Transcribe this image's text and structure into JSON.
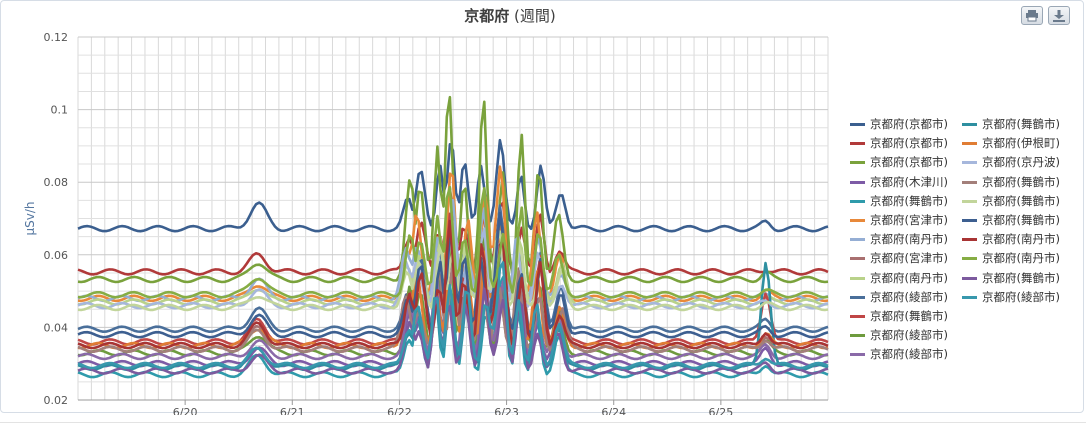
{
  "toolbar": {
    "print_icon": "print-icon",
    "export_icon": "download-icon"
  },
  "chart_data": {
    "type": "line",
    "title": "京都府",
    "subtitle": "(週間)",
    "ylabel": "μSv/h",
    "ylim": [
      0.02,
      0.12
    ],
    "yticks": [
      "0.02",
      "0.04",
      "0.06",
      "0.08",
      "0.1",
      "0.12"
    ],
    "xlim": [
      0,
      7
    ],
    "xticks": [
      {
        "x": 1,
        "label": "6/20"
      },
      {
        "x": 2,
        "label": "6/21"
      },
      {
        "x": 3,
        "label": "6/22"
      },
      {
        "x": 4,
        "label": "6/23"
      },
      {
        "x": 5,
        "label": "6/24"
      },
      {
        "x": 6,
        "label": "6/25"
      }
    ],
    "grid": true,
    "legend_position": "right",
    "series": [
      {
        "name": "京都府(京都市)",
        "color": "#3b5f8f",
        "base": 0.0672,
        "b1": 0.074,
        "b2": 0.0958,
        "b3": 0.073,
        "b4": 0.069,
        "col": 0
      },
      {
        "name": "京都府(京都市)",
        "color": "#b13a3a",
        "base": 0.0553,
        "b1": 0.06,
        "b2": 0.079,
        "b3": 0.064,
        "b4": 0.056,
        "col": 0
      },
      {
        "name": "京都府(京都市)",
        "color": "#7aa23c",
        "base": 0.0532,
        "b1": 0.058,
        "b2": 0.109,
        "b3": 0.079,
        "b4": 0.055,
        "col": 0
      },
      {
        "name": "京都府(木津川)",
        "color": "#7d5ba6",
        "base": 0.03,
        "b1": 0.034,
        "b2": 0.06,
        "b3": 0.048,
        "b4": 0.034,
        "col": 0
      },
      {
        "name": "京都府(舞鶴市)",
        "color": "#2f9bab",
        "base": 0.027,
        "b1": 0.032,
        "b2": 0.056,
        "b3": 0.044,
        "b4": 0.03,
        "col": 0
      },
      {
        "name": "京都府(宮津市)",
        "color": "#e8893a",
        "base": 0.048,
        "b1": 0.052,
        "b2": 0.086,
        "b3": 0.07,
        "b4": 0.05,
        "col": 0
      },
      {
        "name": "京都府(南丹市)",
        "color": "#95aed4",
        "base": 0.048,
        "b1": 0.053,
        "b2": 0.076,
        "b3": 0.062,
        "b4": 0.049,
        "col": 0
      },
      {
        "name": "京都府(宮津市)",
        "color": "#a97070",
        "base": 0.034,
        "b1": 0.04,
        "b2": 0.065,
        "b3": 0.052,
        "b4": 0.038,
        "col": 0
      },
      {
        "name": "京都府(南丹市)",
        "color": "#b9d28a",
        "base": 0.047,
        "b1": 0.051,
        "b2": 0.072,
        "b3": 0.06,
        "b4": 0.048,
        "col": 0
      },
      {
        "name": "京都府(綾部市)",
        "color": "#4a6f9a",
        "base": 0.0395,
        "b1": 0.045,
        "b2": 0.074,
        "b3": 0.058,
        "b4": 0.042,
        "col": 0
      },
      {
        "name": "京都府(舞鶴市)",
        "color": "#c04646",
        "base": 0.036,
        "b1": 0.042,
        "b2": 0.072,
        "b3": 0.056,
        "b4": 0.05,
        "col": 0
      },
      {
        "name": "京都府(綾部市)",
        "color": "#6e9b3e",
        "base": 0.033,
        "b1": 0.038,
        "b2": 0.07,
        "b3": 0.055,
        "b4": 0.036,
        "col": 0
      },
      {
        "name": "京都府(綾部市)",
        "color": "#8a6aa8",
        "base": 0.032,
        "b1": 0.036,
        "b2": 0.062,
        "b3": 0.05,
        "b4": 0.035,
        "col": 0
      },
      {
        "name": "京都府(舞鶴市)",
        "color": "#2e8fa0",
        "base": 0.029,
        "b1": 0.034,
        "b2": 0.058,
        "b3": 0.06,
        "b4": 0.0585,
        "col": 1
      },
      {
        "name": "京都府(伊根町)",
        "color": "#e07d34",
        "base": 0.035,
        "b1": 0.04,
        "b2": 0.068,
        "b3": 0.058,
        "b4": 0.038,
        "col": 1
      },
      {
        "name": "京都府(京丹波)",
        "color": "#a6b7dc",
        "base": 0.046,
        "b1": 0.05,
        "b2": 0.07,
        "b3": 0.058,
        "b4": 0.047,
        "col": 1
      },
      {
        "name": "京都府(舞鶴市)",
        "color": "#a37f7a",
        "base": 0.034,
        "b1": 0.039,
        "b2": 0.064,
        "b3": 0.052,
        "b4": 0.037,
        "col": 1
      },
      {
        "name": "京都府(舞鶴市)",
        "color": "#c2d59b",
        "base": 0.0455,
        "b1": 0.049,
        "b2": 0.07,
        "b3": 0.058,
        "b4": 0.0465,
        "col": 1
      },
      {
        "name": "京都府(舞鶴市)",
        "color": "#3d5f90",
        "base": 0.038,
        "b1": 0.043,
        "b2": 0.072,
        "b3": 0.056,
        "b4": 0.04,
        "col": 1
      },
      {
        "name": "京都府(南丹市)",
        "color": "#a83434",
        "base": 0.035,
        "b1": 0.041,
        "b2": 0.07,
        "b3": 0.055,
        "b4": 0.039,
        "col": 1
      },
      {
        "name": "京都府(南丹市)",
        "color": "#86ad44",
        "base": 0.049,
        "b1": 0.054,
        "b2": 0.082,
        "b3": 0.066,
        "b4": 0.05,
        "col": 1
      },
      {
        "name": "京都府(舞鶴市)",
        "color": "#7c5a9e",
        "base": 0.028,
        "b1": 0.032,
        "b2": 0.056,
        "b3": 0.046,
        "b4": 0.03,
        "col": 1
      },
      {
        "name": "京都府(綾部市)",
        "color": "#3898ad",
        "base": 0.0295,
        "b1": 0.034,
        "b2": 0.06,
        "b3": 0.048,
        "b4": 0.032,
        "col": 1
      }
    ]
  }
}
